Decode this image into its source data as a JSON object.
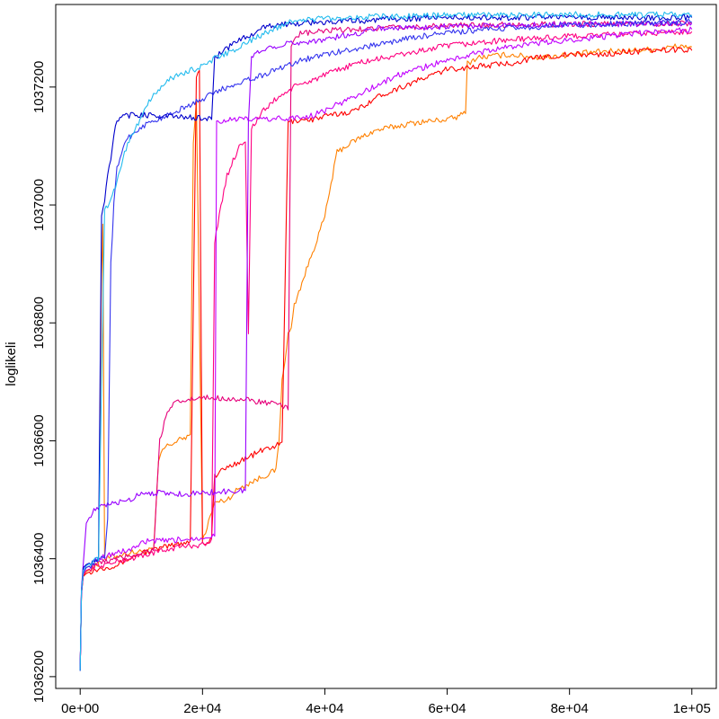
{
  "chart_data": {
    "type": "line",
    "title": "",
    "xlabel": "",
    "ylabel": "loglikeli",
    "xlim": [
      -4000,
      104000
    ],
    "ylim": [
      1036180,
      1037340
    ],
    "x_ticks": [
      0,
      20000,
      40000,
      60000,
      80000,
      100000
    ],
    "x_tick_labels": [
      "0e+00",
      "2e+04",
      "4e+04",
      "6e+04",
      "8e+04",
      "1e+05"
    ],
    "y_ticks": [
      1036200,
      1036400,
      1036600,
      1036800,
      1037000,
      1037200
    ],
    "y_tick_labels": [
      "1036200",
      "1036400",
      "1036600",
      "1036800",
      "1037000",
      "1037200"
    ],
    "grid": false,
    "legend": "none",
    "series": [
      {
        "color": "#FF8000",
        "x": [
          0,
          200,
          500,
          1000,
          2000,
          3000,
          3200,
          3500,
          3700,
          4000,
          6000,
          8000,
          10000,
          12000,
          12800,
          13200,
          14000,
          16000,
          17000,
          18000,
          18500,
          19000,
          20000,
          22000,
          24000,
          25000,
          26000,
          28000,
          30000,
          32000,
          32500,
          33000,
          34000,
          34500,
          35000,
          36000,
          38000,
          40000,
          42000,
          45000,
          48000,
          50000,
          55000,
          60000,
          62000,
          63000,
          63300,
          65000,
          70000,
          75000,
          80000,
          85000,
          90000,
          95000,
          98000,
          100000
        ],
        "y": [
          1036210,
          1036340,
          1036372,
          1036378,
          1036385,
          1036390,
          1036600,
          1036880,
          1036970,
          1036400,
          1036405,
          1036410,
          1036412,
          1036415,
          1036560,
          1036580,
          1036590,
          1036600,
          1036605,
          1036610,
          1037100,
          1037180,
          1036430,
          1036495,
          1036500,
          1036510,
          1036520,
          1036530,
          1036540,
          1036550,
          1036600,
          1036700,
          1036780,
          1036790,
          1036830,
          1036860,
          1036920,
          1036980,
          1037090,
          1037110,
          1037125,
          1037130,
          1037140,
          1037145,
          1037150,
          1037160,
          1037240,
          1037250,
          1037255,
          1037250,
          1037255,
          1037260,
          1037262,
          1037265,
          1037270,
          1037268
        ]
      },
      {
        "color": "#FF0000",
        "x": [
          0,
          200,
          500,
          1000,
          2000,
          4000,
          6000,
          8000,
          10000,
          12000,
          14000,
          16000,
          18000,
          19000,
          19500,
          20000,
          21000,
          21500,
          22000,
          24000,
          26000,
          28000,
          30000,
          33000,
          34000,
          36000,
          38000,
          40000,
          45000,
          48000,
          50000,
          55000,
          60000,
          65000,
          70000,
          75000,
          80000,
          85000,
          90000,
          95000,
          98000,
          100000
        ],
        "y": [
          1036210,
          1036340,
          1036370,
          1036375,
          1036380,
          1036385,
          1036390,
          1036400,
          1036410,
          1036415,
          1036420,
          1036425,
          1036430,
          1037220,
          1037230,
          1036430,
          1036425,
          1036440,
          1036540,
          1036555,
          1036565,
          1036575,
          1036585,
          1036595,
          1037140,
          1037145,
          1037145,
          1037150,
          1037160,
          1037180,
          1037190,
          1037210,
          1037230,
          1037235,
          1037240,
          1037250,
          1037255,
          1037255,
          1037260,
          1037262,
          1037264,
          1037262
        ]
      },
      {
        "color": "#FF0080",
        "x": [
          0,
          200,
          500,
          1000,
          2000,
          4000,
          6000,
          8000,
          10000,
          12000,
          14000,
          16000,
          18000,
          20000,
          21000,
          21500,
          22000,
          24000,
          26000,
          27000,
          27500,
          28000,
          30000,
          32000,
          35000,
          40000,
          45000,
          50000,
          55000,
          60000,
          65000,
          70000,
          75000,
          80000,
          85000,
          90000,
          95000,
          100000
        ],
        "y": [
          1036210,
          1036340,
          1036372,
          1036380,
          1036385,
          1036390,
          1036395,
          1036400,
          1036405,
          1036410,
          1036415,
          1036420,
          1036422,
          1036424,
          1036426,
          1036430,
          1036940,
          1037050,
          1037100,
          1037110,
          1036780,
          1037130,
          1037160,
          1037180,
          1037200,
          1037220,
          1037240,
          1037250,
          1037260,
          1037270,
          1037275,
          1037280,
          1037283,
          1037286,
          1037288,
          1037290,
          1037292,
          1037294
        ]
      },
      {
        "color": "#E6007A",
        "x": [
          0,
          200,
          500,
          1000,
          2000,
          4000,
          6000,
          8000,
          10000,
          12000,
          13000,
          14000,
          15000,
          16000,
          18000,
          20000,
          22000,
          24000,
          26000,
          28000,
          30000,
          32000,
          33000,
          34000,
          34500,
          35000,
          36000,
          40000,
          45000,
          50000,
          55000,
          60000,
          65000,
          70000,
          75000,
          80000,
          85000,
          90000,
          95000,
          100000
        ],
        "y": [
          1036210,
          1036345,
          1036375,
          1036385,
          1036390,
          1036395,
          1036400,
          1036405,
          1036410,
          1036415,
          1036600,
          1036640,
          1036660,
          1036665,
          1036670,
          1036672,
          1036673,
          1036672,
          1036670,
          1036668,
          1036665,
          1036662,
          1036658,
          1036655,
          1037270,
          1037285,
          1037290,
          1037295,
          1037298,
          1037300,
          1037302,
          1037304,
          1037305,
          1037306,
          1037306,
          1037307,
          1037307,
          1037308,
          1037308,
          1037308
        ]
      },
      {
        "color": "#C000FF",
        "x": [
          0,
          200,
          500,
          1000,
          2000,
          3000,
          4000,
          6000,
          8000,
          9000,
          10000,
          11000,
          12000,
          14000,
          16000,
          18000,
          20000,
          21000,
          22000,
          22300,
          24000,
          26000,
          28000,
          30000,
          32000,
          34000,
          36000,
          38000,
          40000,
          42000,
          45000,
          48000,
          50000,
          52000,
          55000,
          60000,
          65000,
          70000,
          80000,
          90000,
          100000
        ],
        "y": [
          1036210,
          1036345,
          1036380,
          1036390,
          1036395,
          1036400,
          1036405,
          1036410,
          1036415,
          1036420,
          1036425,
          1036430,
          1036430,
          1036430,
          1036432,
          1036434,
          1036436,
          1036438,
          1036440,
          1037140,
          1037145,
          1037145,
          1037145,
          1037146,
          1037146,
          1037147,
          1037148,
          1037152,
          1037160,
          1037170,
          1037185,
          1037200,
          1037210,
          1037220,
          1037230,
          1037245,
          1037258,
          1037268,
          1037280,
          1037290,
          1037298
        ]
      },
      {
        "color": "#9900FF",
        "x": [
          0,
          200,
          500,
          1000,
          2000,
          4000,
          6000,
          8000,
          9000,
          9500,
          10000,
          12000,
          14000,
          16000,
          18000,
          20000,
          22000,
          24000,
          26000,
          27000,
          27500,
          28000,
          29000,
          30000,
          32000,
          35000,
          38000,
          40000,
          42000,
          45000,
          48000,
          50000,
          55000,
          60000,
          70000,
          80000,
          90000,
          100000
        ],
        "y": [
          1036210,
          1036350,
          1036390,
          1036460,
          1036480,
          1036490,
          1036495,
          1036500,
          1036505,
          1036510,
          1036512,
          1036512,
          1036511,
          1036510,
          1036510,
          1036512,
          1036513,
          1036514,
          1036515,
          1036517,
          1037140,
          1037250,
          1037258,
          1037265,
          1037270,
          1037275,
          1037278,
          1037280,
          1037285,
          1037290,
          1037300,
          1037300,
          1037301,
          1037303,
          1037305,
          1037306,
          1037307,
          1037308
        ]
      },
      {
        "color": "#3333EE",
        "x": [
          0,
          200,
          500,
          1000,
          2000,
          3000,
          4000,
          4500,
          5000,
          5500,
          6000,
          7000,
          8000,
          9000,
          10000,
          11000,
          12000,
          13000,
          14000,
          16000,
          18000,
          20000,
          22000,
          24000,
          26000,
          28000,
          30000,
          32000,
          34000,
          36000,
          38000,
          40000,
          45000,
          50000,
          55000,
          60000,
          70000,
          80000,
          90000,
          100000
        ],
        "y": [
          1036210,
          1036340,
          1036375,
          1036385,
          1036390,
          1036400,
          1036402,
          1036470,
          1036900,
          1037000,
          1037060,
          1037100,
          1037115,
          1037125,
          1037132,
          1037138,
          1037143,
          1037147,
          1037150,
          1037160,
          1037170,
          1037180,
          1037190,
          1037200,
          1037208,
          1037215,
          1037220,
          1037230,
          1037238,
          1037245,
          1037250,
          1037255,
          1037265,
          1037275,
          1037285,
          1037292,
          1037300,
          1037305,
          1037308,
          1037310
        ]
      },
      {
        "color": "#0000CC",
        "x": [
          0,
          200,
          500,
          1000,
          2000,
          3000,
          3500,
          4000,
          4500,
          5000,
          5500,
          6000,
          7000,
          8000,
          10000,
          12000,
          14000,
          16000,
          18000,
          20000,
          21500,
          22000,
          24000,
          26000,
          28000,
          30000,
          32000,
          35000,
          40000,
          45000,
          50000,
          60000,
          70000,
          80000,
          90000,
          100000
        ],
        "y": [
          1036210,
          1036345,
          1036385,
          1036390,
          1036395,
          1036400,
          1036980,
          1037010,
          1037050,
          1037080,
          1037120,
          1037140,
          1037150,
          1037152,
          1037153,
          1037152,
          1037150,
          1037150,
          1037148,
          1037148,
          1037146,
          1037250,
          1037265,
          1037280,
          1037290,
          1037300,
          1037305,
          1037308,
          1037310,
          1037312,
          1037315,
          1037318,
          1037318,
          1037318,
          1037318,
          1037318
        ]
      },
      {
        "color": "#22BBEE",
        "x": [
          0,
          200,
          500,
          1000,
          2000,
          3000,
          4000,
          5000,
          6000,
          7000,
          8000,
          9000,
          10000,
          11000,
          12000,
          13000,
          14000,
          15000,
          16000,
          18000,
          20000,
          22000,
          24000,
          26000,
          28000,
          30000,
          32000,
          34000,
          36000,
          38000,
          40000,
          45000,
          50000,
          55000,
          60000,
          70000,
          80000,
          90000,
          100000
        ],
        "y": [
          1036210,
          1036345,
          1036380,
          1036388,
          1036395,
          1036400,
          1036990,
          1037010,
          1037040,
          1037080,
          1037110,
          1037130,
          1037150,
          1037170,
          1037185,
          1037198,
          1037210,
          1037215,
          1037220,
          1037228,
          1037235,
          1037248,
          1037258,
          1037266,
          1037280,
          1037290,
          1037300,
          1037310,
          1037314,
          1037315,
          1037317,
          1037318,
          1037320,
          1037321,
          1037322,
          1037322,
          1037323,
          1037323,
          1037322
        ]
      }
    ]
  }
}
